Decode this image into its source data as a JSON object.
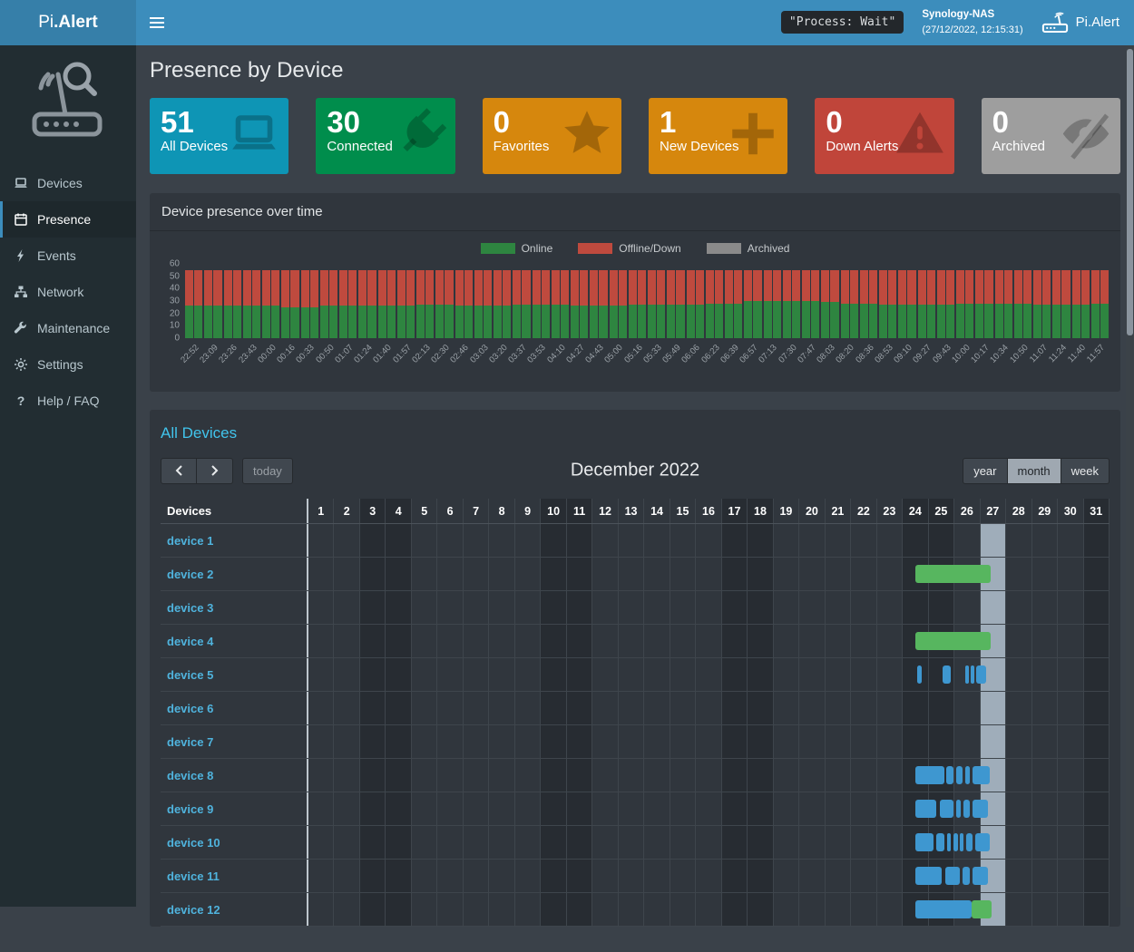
{
  "navbar": {
    "brand_light": "Pi",
    "brand_bold": ".Alert",
    "process_badge": "\"Process: Wait\"",
    "host_name": "Synology-NAS",
    "host_time": "(27/12/2022, 12:15:31)",
    "app_name": "Pi.Alert"
  },
  "sidebar": {
    "items": [
      {
        "label": "Devices",
        "icon": "laptop-icon",
        "active": false
      },
      {
        "label": "Presence",
        "icon": "calendar-icon",
        "active": true
      },
      {
        "label": "Events",
        "icon": "bolt-icon",
        "active": false
      },
      {
        "label": "Network",
        "icon": "sitemap-icon",
        "active": false
      },
      {
        "label": "Maintenance",
        "icon": "wrench-icon",
        "active": false
      },
      {
        "label": "Settings",
        "icon": "gear-icon",
        "active": false
      },
      {
        "label": "Help / FAQ",
        "icon": "question-icon",
        "active": false
      }
    ]
  },
  "page": {
    "title": "Presence by Device"
  },
  "summary_boxes": [
    {
      "value": "51",
      "label": "All Devices",
      "color": "#0e95b5",
      "icon": "laptop-icon"
    },
    {
      "value": "30",
      "label": "Connected",
      "color": "#008d4c",
      "icon": "plug-icon"
    },
    {
      "value": "0",
      "label": "Favorites",
      "color": "#d6870d",
      "icon": "star-icon"
    },
    {
      "value": "1",
      "label": "New Devices",
      "color": "#d6870d",
      "icon": "plus-icon"
    },
    {
      "value": "0",
      "label": "Down Alerts",
      "color": "#c0453a",
      "icon": "warning-icon"
    },
    {
      "value": "0",
      "label": "Archived",
      "color": "#9e9e9e",
      "icon": "eye-slash-icon"
    }
  ],
  "presence_panel": {
    "title": "Device presence over time"
  },
  "chart_data": {
    "type": "bar",
    "stacked": true,
    "title": "Device presence over time",
    "ylim": [
      0,
      60
    ],
    "yticks": [
      0,
      10,
      20,
      30,
      40,
      50,
      60
    ],
    "legend_position": "top",
    "x": [
      "22:52",
      "23:09",
      "23:26",
      "23:43",
      "00:00",
      "00:16",
      "00:33",
      "00:50",
      "01:07",
      "01:24",
      "01:40",
      "01:57",
      "02:13",
      "02:30",
      "02:46",
      "03:03",
      "03:20",
      "03:37",
      "03:53",
      "04:10",
      "04:27",
      "04:43",
      "05:00",
      "05:16",
      "05:33",
      "05:49",
      "06:06",
      "06:23",
      "06:39",
      "06:57",
      "07:13",
      "07:30",
      "07:47",
      "08:03",
      "08:20",
      "08:36",
      "08:53",
      "09:10",
      "09:27",
      "09:43",
      "10:00",
      "10:17",
      "10:34",
      "10:50",
      "11:07",
      "11:24",
      "11:40",
      "11:57"
    ],
    "series": [
      {
        "name": "Online",
        "color": "#2e8540",
        "values": [
          26,
          26,
          26,
          26,
          26,
          25,
          25,
          26,
          26,
          26,
          26,
          26,
          27,
          27,
          26,
          26,
          26,
          27,
          27,
          27,
          26,
          26,
          26,
          27,
          27,
          27,
          27,
          28,
          28,
          30,
          30,
          30,
          30,
          29,
          28,
          28,
          27,
          27,
          27,
          27,
          28,
          28,
          28,
          28,
          27,
          27,
          27,
          28
        ]
      },
      {
        "name": "Offline/Down",
        "color": "#bf4a3e",
        "values": [
          29,
          29,
          29,
          29,
          29,
          30,
          30,
          29,
          29,
          29,
          29,
          29,
          28,
          28,
          29,
          29,
          29,
          28,
          28,
          28,
          29,
          29,
          29,
          28,
          28,
          28,
          28,
          27,
          27,
          25,
          25,
          25,
          25,
          26,
          27,
          27,
          28,
          28,
          28,
          28,
          27,
          27,
          27,
          27,
          28,
          28,
          28,
          27
        ]
      },
      {
        "name": "Archived",
        "color": "#8a8a8a",
        "values": [
          0,
          0,
          0,
          0,
          0,
          0,
          0,
          0,
          0,
          0,
          0,
          0,
          0,
          0,
          0,
          0,
          0,
          0,
          0,
          0,
          0,
          0,
          0,
          0,
          0,
          0,
          0,
          0,
          0,
          0,
          0,
          0,
          0,
          0,
          0,
          0,
          0,
          0,
          0,
          0,
          0,
          0,
          0,
          0,
          0,
          0,
          0,
          0
        ]
      }
    ]
  },
  "calendar": {
    "section_title": "All Devices",
    "toolbar": {
      "today_label": "today",
      "title": "December 2022",
      "views": [
        {
          "label": "year",
          "active": false
        },
        {
          "label": "month",
          "active": true
        },
        {
          "label": "week",
          "active": false
        }
      ]
    },
    "devices_header": "Devices",
    "days": [
      1,
      2,
      3,
      4,
      5,
      6,
      7,
      8,
      9,
      10,
      11,
      12,
      13,
      14,
      15,
      16,
      17,
      18,
      19,
      20,
      21,
      22,
      23,
      24,
      25,
      26,
      27,
      28,
      29,
      30,
      31
    ],
    "weekend_days": [
      3,
      4,
      10,
      11,
      17,
      18,
      24,
      25,
      31
    ],
    "today_day": 27,
    "bar_colors": {
      "online": "#57b65f",
      "event": "#3e97d0"
    },
    "resources": [
      {
        "name": "device 1",
        "bars": []
      },
      {
        "name": "device 2",
        "bars": [
          {
            "start_day": 23.5,
            "end_day": 26.4,
            "color": "online"
          }
        ]
      },
      {
        "name": "device 3",
        "bars": []
      },
      {
        "name": "device 4",
        "bars": [
          {
            "start_day": 23.5,
            "end_day": 26.4,
            "color": "online"
          }
        ]
      },
      {
        "name": "device 5",
        "bars": [
          {
            "start_day": 23.55,
            "end_day": 23.75,
            "color": "event"
          },
          {
            "start_day": 24.55,
            "end_day": 24.85,
            "color": "event"
          },
          {
            "start_day": 25.42,
            "end_day": 25.56,
            "color": "event"
          },
          {
            "start_day": 25.62,
            "end_day": 25.76,
            "color": "event"
          },
          {
            "start_day": 25.84,
            "end_day": 26.22,
            "color": "event"
          }
        ]
      },
      {
        "name": "device 6",
        "bars": []
      },
      {
        "name": "device 7",
        "bars": []
      },
      {
        "name": "device 8",
        "bars": [
          {
            "start_day": 23.5,
            "end_day": 24.6,
            "color": "event"
          },
          {
            "start_day": 24.68,
            "end_day": 24.95,
            "color": "event"
          },
          {
            "start_day": 25.05,
            "end_day": 25.33,
            "color": "event"
          },
          {
            "start_day": 25.42,
            "end_day": 25.6,
            "color": "event"
          },
          {
            "start_day": 25.7,
            "end_day": 26.35,
            "color": "event"
          }
        ]
      },
      {
        "name": "device 9",
        "bars": [
          {
            "start_day": 23.5,
            "end_day": 24.3,
            "color": "event"
          },
          {
            "start_day": 24.45,
            "end_day": 24.95,
            "color": "event"
          },
          {
            "start_day": 25.05,
            "end_day": 25.25,
            "color": "event"
          },
          {
            "start_day": 25.35,
            "end_day": 25.6,
            "color": "event"
          },
          {
            "start_day": 25.7,
            "end_day": 26.28,
            "color": "event"
          }
        ]
      },
      {
        "name": "device 10",
        "bars": [
          {
            "start_day": 23.5,
            "end_day": 24.2,
            "color": "event"
          },
          {
            "start_day": 24.3,
            "end_day": 24.6,
            "color": "event"
          },
          {
            "start_day": 24.7,
            "end_day": 24.85,
            "color": "event"
          },
          {
            "start_day": 24.95,
            "end_day": 25.12,
            "color": "event"
          },
          {
            "start_day": 25.2,
            "end_day": 25.36,
            "color": "event"
          },
          {
            "start_day": 25.44,
            "end_day": 25.7,
            "color": "event"
          },
          {
            "start_day": 25.8,
            "end_day": 26.35,
            "color": "event"
          }
        ]
      },
      {
        "name": "device 11",
        "bars": [
          {
            "start_day": 23.5,
            "end_day": 24.5,
            "color": "event"
          },
          {
            "start_day": 24.65,
            "end_day": 25.2,
            "color": "event"
          },
          {
            "start_day": 25.3,
            "end_day": 25.6,
            "color": "event"
          },
          {
            "start_day": 25.7,
            "end_day": 26.28,
            "color": "event"
          }
        ]
      },
      {
        "name": "device 12",
        "bars": [
          {
            "start_day": 23.5,
            "end_day": 25.65,
            "color": "event"
          },
          {
            "start_day": 25.68,
            "end_day": 26.45,
            "color": "online"
          }
        ]
      }
    ]
  }
}
